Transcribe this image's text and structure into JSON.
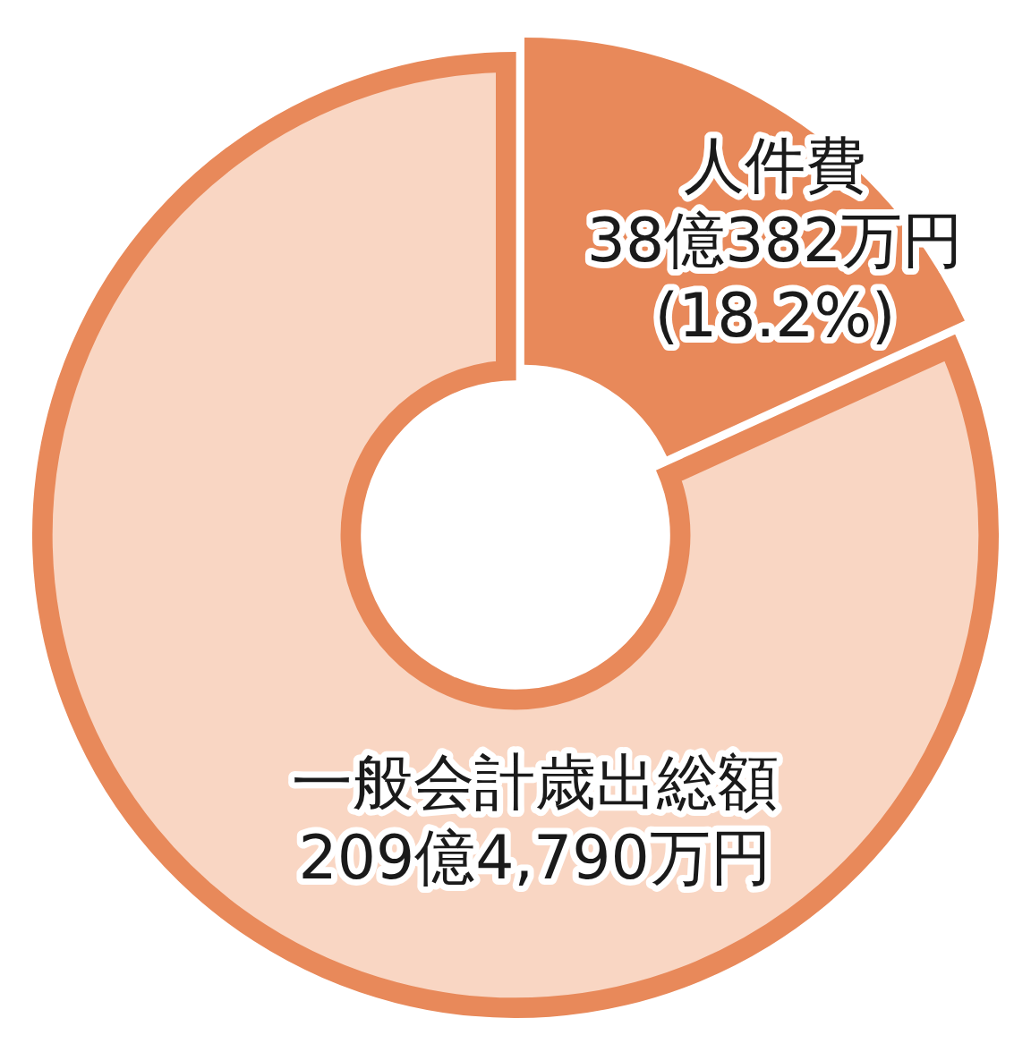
{
  "chart_data": {
    "type": "donut",
    "categories": [
      "人件費",
      null
    ],
    "values": [
      18.2,
      81.8
    ],
    "colors": [
      "#e8895a",
      "#f9d6c3"
    ],
    "value_labels": [
      "38億382万円\n(18.2%)",
      null
    ],
    "annotations": [
      "一般会計歳出総額",
      "209億4,790万円"
    ],
    "legend": false
  }
}
